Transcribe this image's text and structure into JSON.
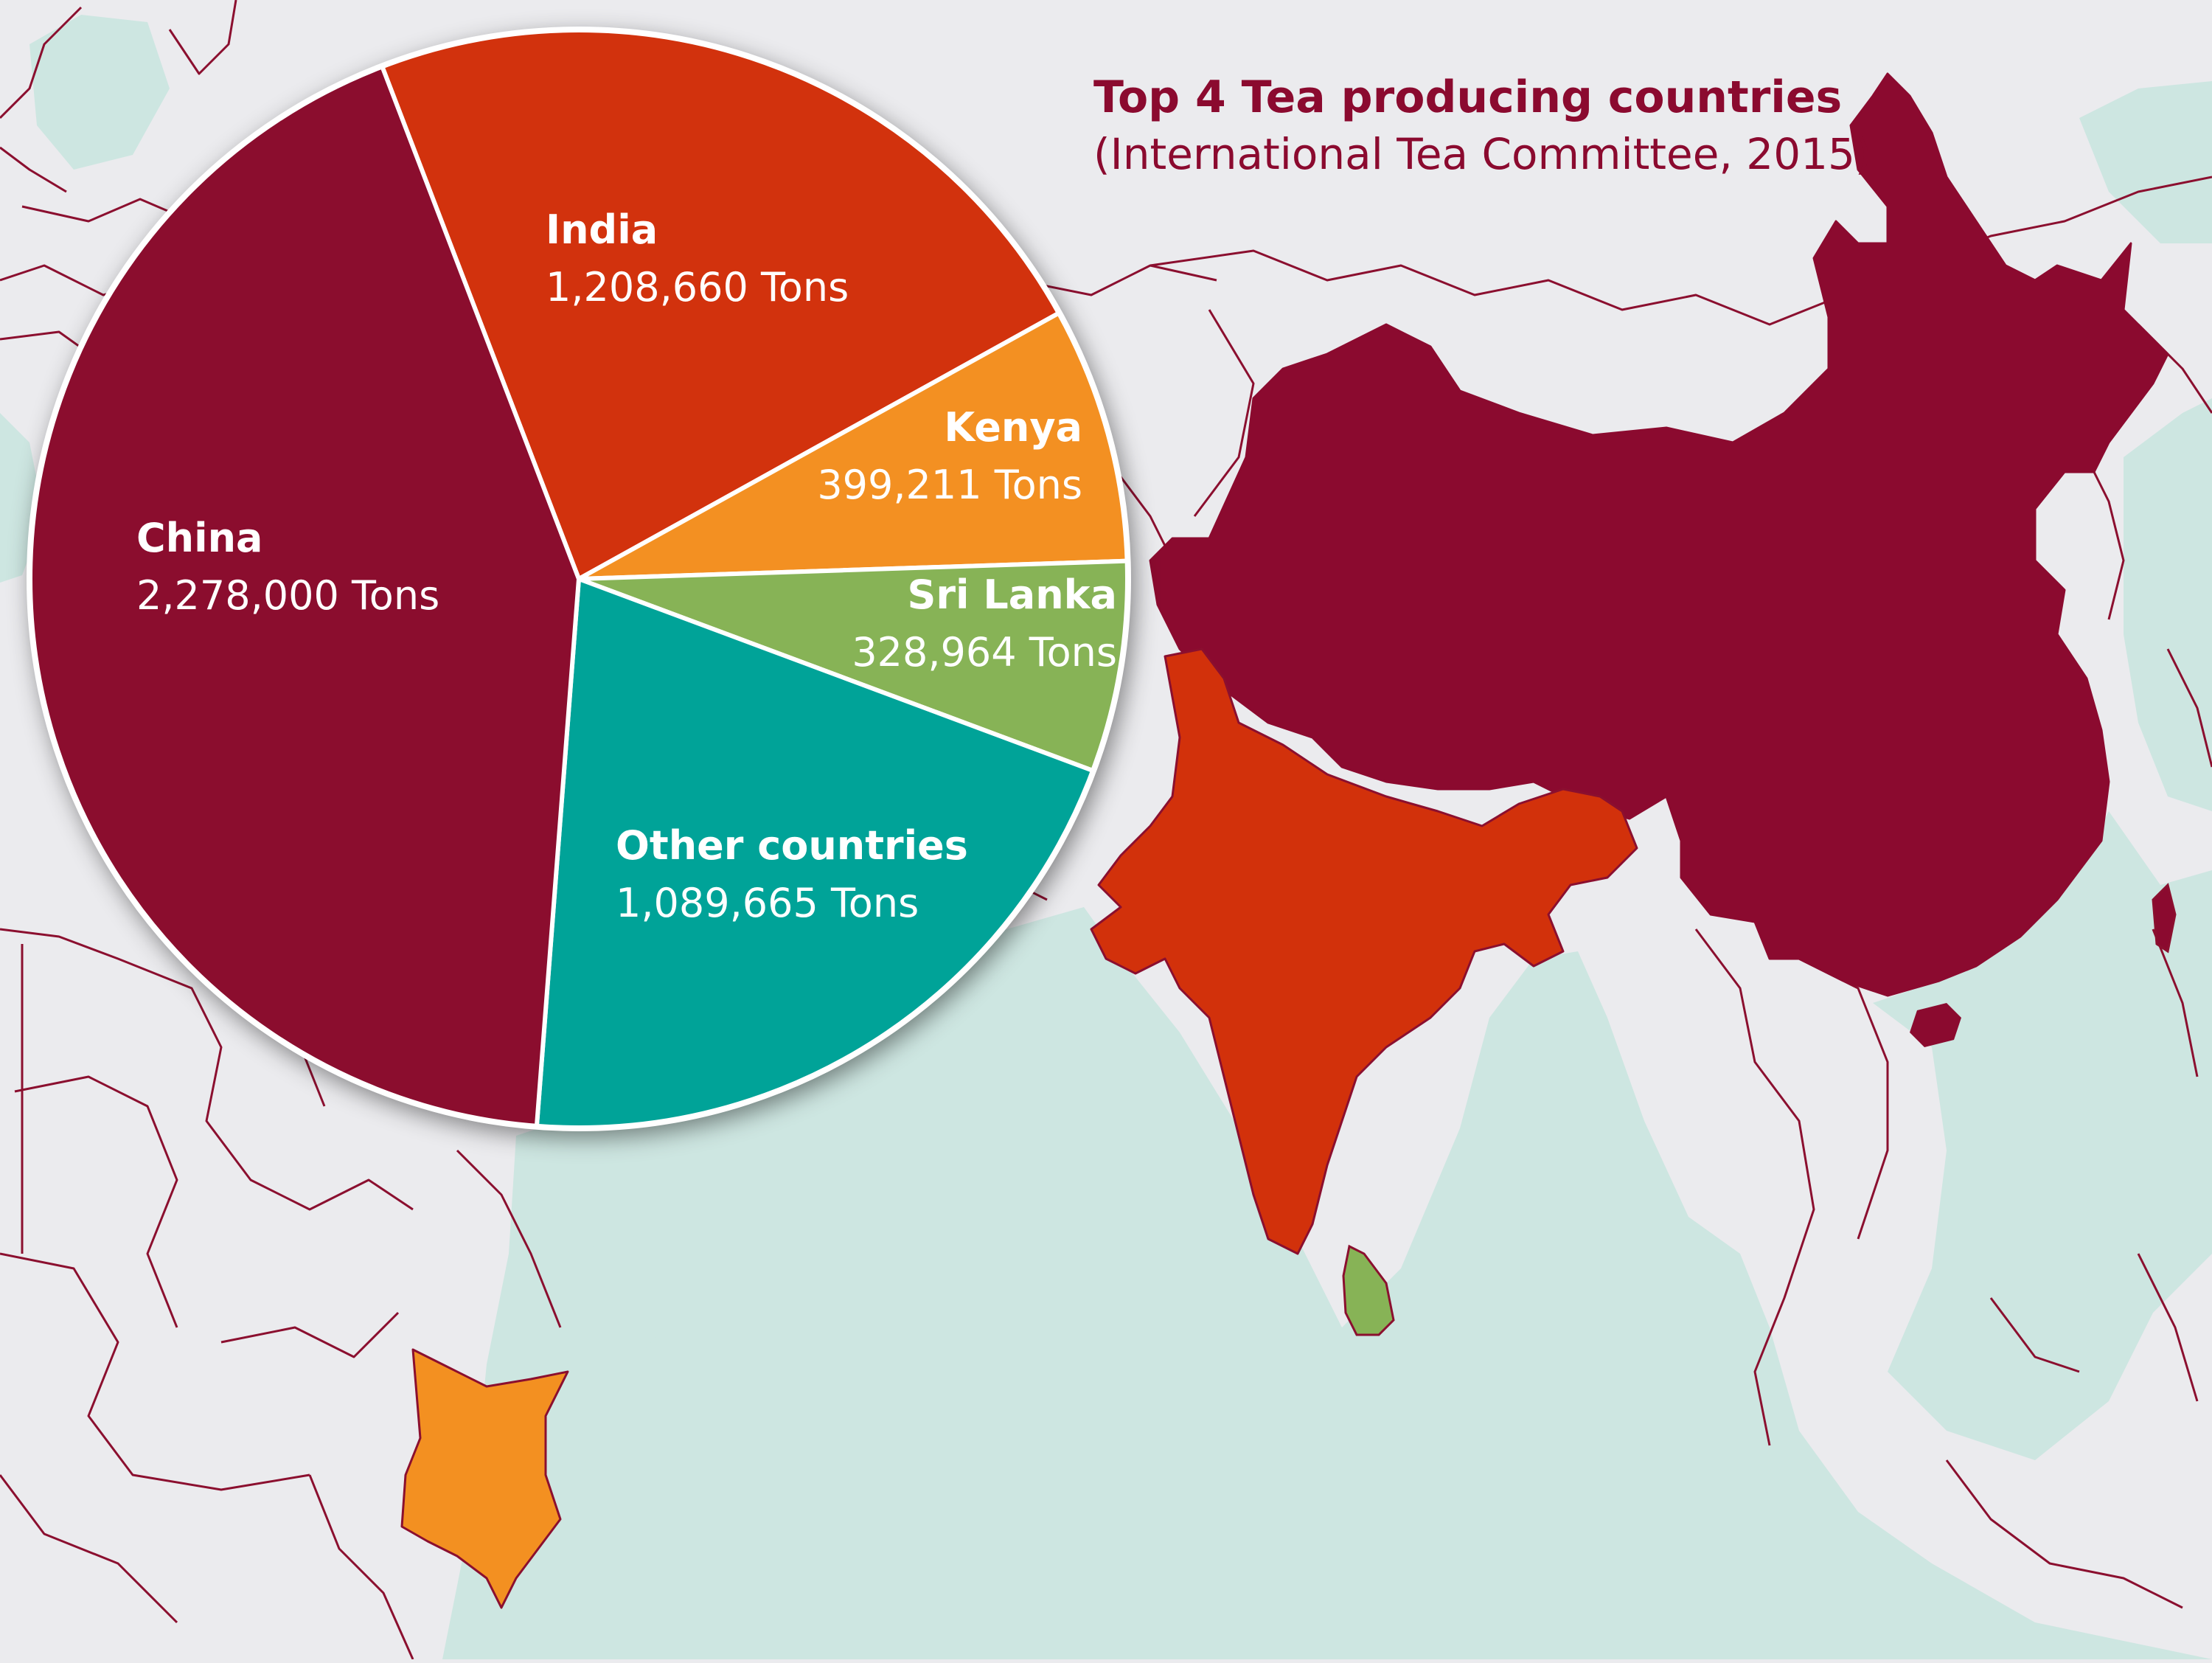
{
  "colors": {
    "background": "#ebebee",
    "sea": "#cde6e1",
    "border": "#8b0f2f",
    "title": "#8b0a2f",
    "subtitle": "#8b0a2f"
  },
  "chart_data": {
    "type": "pie",
    "title": "Top 4 Tea producing countries",
    "subtitle": "(International Tea Committee, 2015)",
    "unit": "Tons",
    "slices": [
      {
        "name": "India",
        "value": 1208660,
        "value_label": "1,208,660 Tons",
        "color": "#d2310b"
      },
      {
        "name": "Kenya",
        "value": 399211,
        "value_label": "399,211 Tons",
        "color": "#f39021"
      },
      {
        "name": "Sri Lanka",
        "value": 328964,
        "value_label": "328,964 Tons",
        "color": "#87b356"
      },
      {
        "name": "Other countries",
        "value": 1089665,
        "value_label": "1,089,665 Tons",
        "color": "#00a398"
      },
      {
        "name": "China",
        "value": 2278000,
        "value_label": "2,278,000 Tons",
        "color": "#8b0a2f"
      }
    ]
  }
}
